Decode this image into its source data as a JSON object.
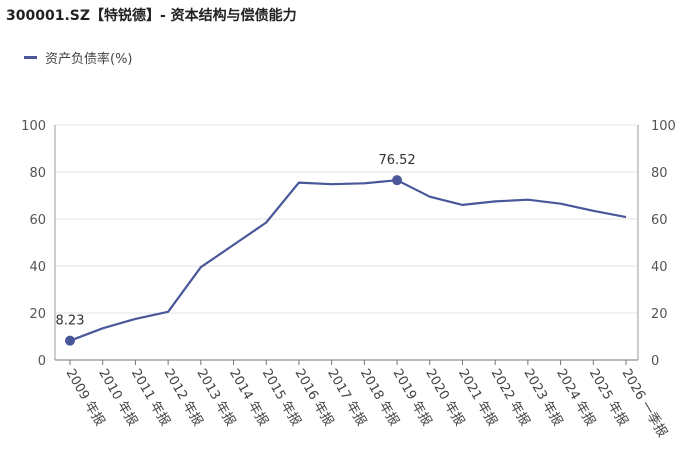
{
  "header": {
    "title": "300001.SZ【特锐德】- 资本结构与偿债能力"
  },
  "legend": {
    "items": [
      {
        "label": "资产负债率(%)",
        "color": "#4a5799"
      }
    ]
  },
  "chart_data": {
    "type": "line",
    "categories": [
      "2009 年报",
      "2010 年报",
      "2011 年报",
      "2012 年报",
      "2013 年报",
      "2014 年报",
      "2015 年报",
      "2016 年报",
      "2017 年报",
      "2018 年报",
      "2019 年报",
      "2020 年报",
      "2021 年报",
      "2022 年报",
      "2023 年报",
      "2024 年报",
      "2025 年报",
      "2026 一季报"
    ],
    "series": [
      {
        "name": "资产负债率(%)",
        "color": "#4a5799",
        "values": [
          8.23,
          13.5,
          17.5,
          20.5,
          39.5,
          49,
          58.5,
          75.5,
          74.8,
          75.2,
          76.52,
          69.5,
          66,
          67.5,
          68.2,
          66.5,
          63.5,
          60.8
        ]
      }
    ],
    "yticks": [
      0,
      20,
      40,
      60,
      80,
      100
    ],
    "ylim": [
      0,
      100
    ],
    "grid": true,
    "annotations": [
      {
        "index": 0,
        "text": "8.23"
      },
      {
        "index": 10,
        "text": "76.52"
      }
    ]
  }
}
